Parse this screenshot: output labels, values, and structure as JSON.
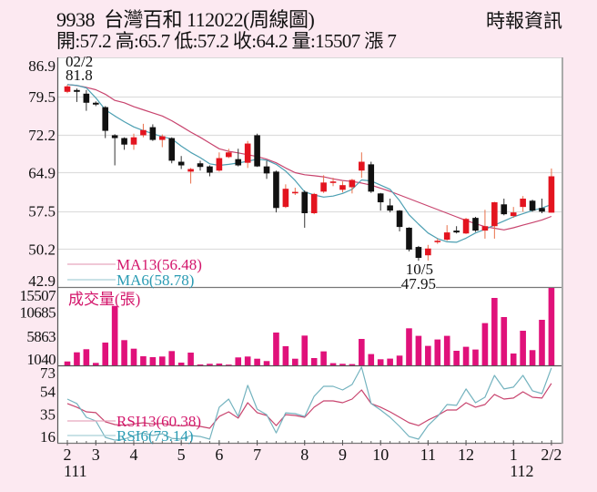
{
  "header": {
    "title": "9938  台灣百和 112022(周線圖)",
    "quote": "開:57.2 高:65.7 低:57.2 收:64.2 量:15507 漲 7",
    "source": "時報資訊"
  },
  "chart_data": {
    "type": "candlestick",
    "title": "9938 台灣百和 112022(周線圖)",
    "subtitle": "開:57.2 高:65.7 低:57.2 收:64.2 量:15507 漲 7",
    "summary": {
      "open": 57.2,
      "high": 65.7,
      "low": 57.2,
      "close": 64.2,
      "volume": 15507,
      "change": 7
    },
    "colors": {
      "up": "#e3141f",
      "down": "#111111",
      "ma13": "#c8446e",
      "ma6": "#4c9fb2",
      "ma13_text": "#d3166b",
      "ma6_text": "#2a9bb3",
      "volume": "#e0117a",
      "rsi13": "#c8446e",
      "rsi6": "#74b3bf",
      "grid": "#dddddd",
      "legend13_line": "#e6a6bd",
      "legend6_line": "#a9d0d8"
    },
    "price_panel": {
      "ylim": [
        42.9,
        86.9
      ],
      "yticks": [
        "86.9",
        "79.5",
        "72.2",
        "64.9",
        "57.5",
        "50.2",
        "42.9"
      ],
      "grid": true
    },
    "candles_ohlc": [
      [
        80.45,
        81.8,
        80.2,
        81.5
      ],
      [
        80.8,
        81.1,
        78.5,
        80.45
      ],
      [
        80.1,
        80.8,
        76.8,
        78.35
      ],
      [
        78.35,
        78.6,
        77.7,
        78.0
      ],
      [
        77.5,
        77.7,
        71.55,
        72.95
      ],
      [
        72.1,
        72.3,
        66.3,
        71.55
      ],
      [
        71.55,
        71.7,
        69.3,
        70.3
      ],
      [
        70.3,
        72.4,
        69.3,
        71.7
      ],
      [
        72.1,
        74.3,
        71.7,
        73.1
      ],
      [
        73.65,
        74.2,
        71.0,
        71.2
      ],
      [
        71.2,
        72.25,
        69.8,
        71.9
      ],
      [
        71.55,
        71.7,
        66.7,
        67.2
      ],
      [
        67.0,
        68.1,
        65.6,
        66.3
      ],
      [
        65.1,
        65.8,
        62.8,
        65.6
      ],
      [
        66.7,
        67.2,
        65.3,
        66.0
      ],
      [
        66.1,
        66.3,
        64.2,
        64.9
      ],
      [
        65.3,
        68.8,
        65.1,
        67.7
      ],
      [
        67.9,
        69.5,
        67.7,
        68.8
      ],
      [
        67.5,
        69.5,
        66.1,
        66.3
      ],
      [
        66.8,
        71.0,
        65.8,
        70.5
      ],
      [
        72.1,
        72.4,
        66.0,
        66.1
      ],
      [
        66.1,
        67.2,
        63.7,
        64.75
      ],
      [
        65.1,
        65.3,
        57.25,
        58.1
      ],
      [
        58.3,
        62.65,
        58.1,
        61.8
      ],
      [
        61.05,
        62.0,
        60.6,
        61.2
      ],
      [
        61.2,
        61.5,
        54.3,
        57.1
      ],
      [
        57.1,
        61.0,
        56.9,
        60.8
      ],
      [
        61.25,
        64.4,
        61.0,
        63.0
      ],
      [
        63.0,
        63.9,
        62.3,
        63.2
      ],
      [
        61.6,
        63.2,
        61.1,
        62.5
      ],
      [
        62.1,
        63.7,
        60.9,
        63.5
      ],
      [
        65.3,
        68.8,
        63.9,
        67.0
      ],
      [
        66.5,
        67.0,
        61.0,
        61.25
      ],
      [
        60.9,
        61.0,
        57.6,
        59.2
      ],
      [
        58.6,
        59.9,
        57.25,
        57.6
      ],
      [
        57.6,
        57.7,
        53.6,
        54.45
      ],
      [
        54.3,
        54.4,
        49.75,
        50.1
      ],
      [
        50.6,
        50.8,
        47.95,
        48.5
      ],
      [
        49.0,
        51.0,
        48.0,
        50.3
      ],
      [
        51.6,
        52.2,
        51.2,
        51.8
      ],
      [
        52.0,
        54.8,
        51.8,
        53.4
      ],
      [
        53.75,
        54.6,
        53.2,
        53.4
      ],
      [
        53.2,
        56.2,
        53.1,
        56.0
      ],
      [
        56.2,
        56.4,
        53.5,
        53.75
      ],
      [
        53.75,
        57.75,
        52.2,
        54.6
      ],
      [
        54.6,
        59.3,
        52.2,
        59.2
      ],
      [
        58.8,
        59.9,
        56.7,
        56.9
      ],
      [
        56.55,
        58.3,
        56.2,
        57.25
      ],
      [
        58.3,
        60.4,
        57.4,
        59.9
      ],
      [
        59.5,
        59.7,
        57.4,
        57.6
      ],
      [
        58.1,
        59.9,
        57.1,
        57.4
      ],
      [
        57.2,
        65.7,
        57.2,
        64.2
      ]
    ],
    "ma13": {
      "label": "MA13(56.48)",
      "values": [
        81.85,
        81.65,
        81.3,
        80.85,
        80.0,
        78.8,
        78.35,
        77.6,
        77.0,
        76.4,
        75.8,
        74.9,
        73.8,
        72.7,
        71.7,
        70.6,
        69.5,
        69.0,
        68.7,
        68.35,
        68.0,
        67.5,
        66.8,
        65.8,
        64.9,
        64.5,
        64.3,
        64.1,
        63.7,
        63.4,
        63.2,
        62.9,
        62.5,
        61.9,
        61.3,
        60.6,
        59.9,
        59.2,
        58.5,
        57.8,
        57.1,
        56.4,
        55.7,
        55.1,
        54.5,
        54.2,
        53.9,
        54.3,
        54.8,
        55.3,
        55.8,
        56.48
      ]
    },
    "ma6": {
      "label": "MA6(58.78)",
      "values": [
        81.85,
        81.7,
        81.2,
        79.3,
        77.0,
        75.8,
        74.7,
        73.7,
        73.0,
        72.4,
        71.8,
        71.4,
        70.0,
        68.8,
        67.8,
        66.6,
        66.3,
        66.5,
        66.75,
        67.1,
        67.5,
        67.3,
        66.5,
        65.2,
        63.4,
        61.2,
        60.6,
        60.2,
        60.4,
        60.9,
        61.7,
        63.5,
        63.3,
        62.5,
        61.7,
        59.5,
        56.8,
        55.0,
        53.3,
        52.2,
        51.6,
        51.5,
        52.3,
        53.3,
        54.0,
        54.8,
        55.6,
        56.4,
        57.0,
        57.6,
        58.1,
        58.78
      ]
    },
    "annotations": [
      {
        "index": 0,
        "lines": [
          "02/2",
          "81.8"
        ],
        "kind": "high"
      },
      {
        "index": 37,
        "lines": [
          "10/5",
          "47.95"
        ],
        "kind": "low"
      }
    ],
    "volume_panel": {
      "label": "成交量(張)",
      "ylim": [
        0,
        15507
      ],
      "yticks": [
        "15507",
        "10685",
        "5863",
        "1040"
      ],
      "values": [
        780,
        2610,
        3230,
        490,
        4560,
        11910,
        5050,
        3340,
        1820,
        1640,
        1770,
        2860,
        550,
        2550,
        180,
        310,
        360,
        150,
        1590,
        1770,
        1330,
        860,
        6570,
        3830,
        1330,
        5960,
        1460,
        2800,
        440,
        310,
        255,
        5290,
        2260,
        1220,
        1350,
        1950,
        7420,
        5910,
        3900,
        5180,
        5910,
        2920,
        3720,
        3170,
        8460,
        13500,
        9670,
        2370,
        6930,
        3050,
        9120,
        15507
      ]
    },
    "rsi_panel": {
      "yticks": [
        "73",
        "54",
        "35",
        "16"
      ],
      "rsi13": {
        "label": "RSI13(60.38)",
        "values": [
          43.8,
          40.8,
          37,
          36.3,
          28.8,
          26.5,
          26,
          27,
          28,
          27,
          27.5,
          26,
          25.5,
          26,
          25,
          23.5,
          33.2,
          37,
          31.8,
          44.5,
          36.3,
          34,
          25.7,
          34.7,
          34,
          32.5,
          40.8,
          46,
          46,
          44.5,
          47.5,
          55,
          43.8,
          40.8,
          37,
          32.5,
          28,
          25.7,
          30.2,
          34,
          38.5,
          38.5,
          44.5,
          40.8,
          43,
          51.3,
          47.5,
          48.3,
          53.5,
          49,
          48.3,
          60.38
        ]
      },
      "rsi6": {
        "label": "RSI6(73.14)",
        "values": [
          47.5,
          43.8,
          32.5,
          29.5,
          16,
          13.7,
          14.5,
          17.5,
          19.7,
          17.5,
          19,
          15.2,
          14.5,
          17.5,
          16.7,
          14.5,
          40.8,
          47.5,
          33.2,
          58.8,
          39.2,
          34.7,
          19.7,
          36.2,
          35.5,
          33.2,
          49.8,
          58,
          58,
          55,
          59.5,
          73.8,
          43.8,
          38.5,
          32.5,
          25,
          16.7,
          14.5,
          25.7,
          33.2,
          43,
          42.3,
          55.8,
          44.5,
          49,
          67,
          55.8,
          57.3,
          67,
          54.3,
          52,
          73.14
        ]
      }
    },
    "x_labels": [
      {
        "index": 0,
        "text": "2",
        "sub": "111"
      },
      {
        "index": 3,
        "text": "3"
      },
      {
        "index": 7,
        "text": "4"
      },
      {
        "index": 12,
        "text": "5"
      },
      {
        "index": 16,
        "text": "6"
      },
      {
        "index": 20,
        "text": "7"
      },
      {
        "index": 25,
        "text": "8"
      },
      {
        "index": 29,
        "text": "9"
      },
      {
        "index": 33,
        "text": "10"
      },
      {
        "index": 38,
        "text": "11"
      },
      {
        "index": 42,
        "text": "12"
      },
      {
        "index": 47,
        "text": "1",
        "sub": "112"
      },
      {
        "index": 51,
        "text": "2/2"
      }
    ],
    "xlabel": "",
    "ylabel": ""
  }
}
